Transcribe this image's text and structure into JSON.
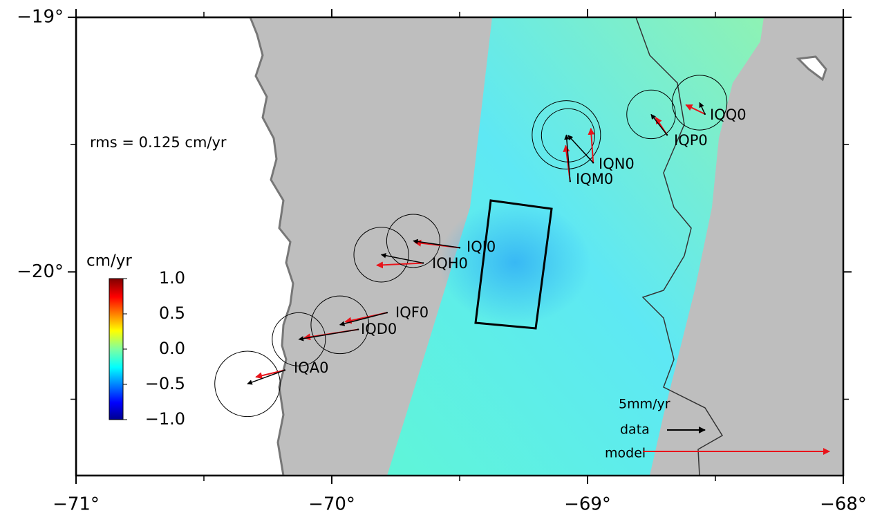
{
  "map": {
    "xlim": [
      -71,
      -68
    ],
    "ylim": [
      -20.8,
      -19
    ],
    "xticks": [
      {
        "value": -71,
        "label": "−71°"
      },
      {
        "value": -70,
        "label": "−70°"
      },
      {
        "value": -69,
        "label": "−69°"
      },
      {
        "value": -68,
        "label": "−68°"
      }
    ],
    "yticks": [
      {
        "value": -19,
        "label": "−19°"
      },
      {
        "value": -20,
        "label": "−20°"
      }
    ],
    "minor_xticks": [
      -70.5,
      -69.5,
      -68.5
    ],
    "minor_yticks": [
      -19.5,
      -20.5
    ],
    "rms_label": "rms = 0.125 cm/yr",
    "colorbar": {
      "title": "cm/yr",
      "lim": [
        -1,
        1
      ],
      "ticks": [
        {
          "value": 1,
          "label": "1.0"
        },
        0.5,
        {
          "value": 0,
          "label": "0.0"
        },
        {
          "value": -0.5,
          "label": "−0.5"
        },
        {
          "value": -1,
          "label": "−1.0"
        }
      ]
    },
    "legend": {
      "scale": "5mm/yr",
      "data": "data",
      "model": "model",
      "data_color": "#000000",
      "model_color": "#e8141b"
    },
    "stations": [
      {
        "name": "IQA0",
        "lon": -70.184,
        "lat": -20.386,
        "data": [
          -4.9,
          -1.8
        ],
        "model": [
          -3.8,
          -0.9
        ],
        "sigma": 4.3
      },
      {
        "name": "IQD0",
        "lon": -69.897,
        "lat": -20.226,
        "data": [
          -7.8,
          -1.3
        ],
        "model": [
          -7.1,
          -1.1
        ],
        "sigma": 3.5
      },
      {
        "name": "IQF0",
        "lon": -69.784,
        "lat": -20.16,
        "data": [
          -6.2,
          -1.6
        ],
        "model": [
          -5.5,
          -1.2
        ],
        "sigma": 3.8
      },
      {
        "name": "IQH0",
        "lon": -69.643,
        "lat": -19.965,
        "data": [
          -5.5,
          1.1
        ],
        "model": [
          -6.1,
          -0.3
        ],
        "sigma": 3.6
      },
      {
        "name": "IQI0",
        "lon": -69.5,
        "lat": -19.905,
        "data": [
          -6.1,
          0.9
        ],
        "model": [
          -5.9,
          0.7
        ],
        "sigma": 3.5
      },
      {
        "name": "IQM0",
        "lon": -69.068,
        "lat": -19.644,
        "data": [
          -0.5,
          6.1
        ],
        "model": [
          -0.6,
          4.7
        ],
        "sigma": 4.5
      },
      {
        "name": "IQN0",
        "lon": -68.978,
        "lat": -19.571,
        "data": [
          -3.3,
          3.6
        ],
        "model": [
          -0.3,
          4.5
        ],
        "sigma": 3.5
      },
      {
        "name": "IQP0",
        "lon": -68.689,
        "lat": -19.462,
        "data": [
          -2.1,
          2.7
        ],
        "model": [
          -1.5,
          2.3
        ],
        "sigma": 3.2
      },
      {
        "name": "IQQ0",
        "lon": -68.541,
        "lat": -19.38,
        "data": [
          -0.7,
          1.5
        ],
        "model": [
          -2.5,
          1.2
        ],
        "sigma": 3.6
      }
    ]
  }
}
